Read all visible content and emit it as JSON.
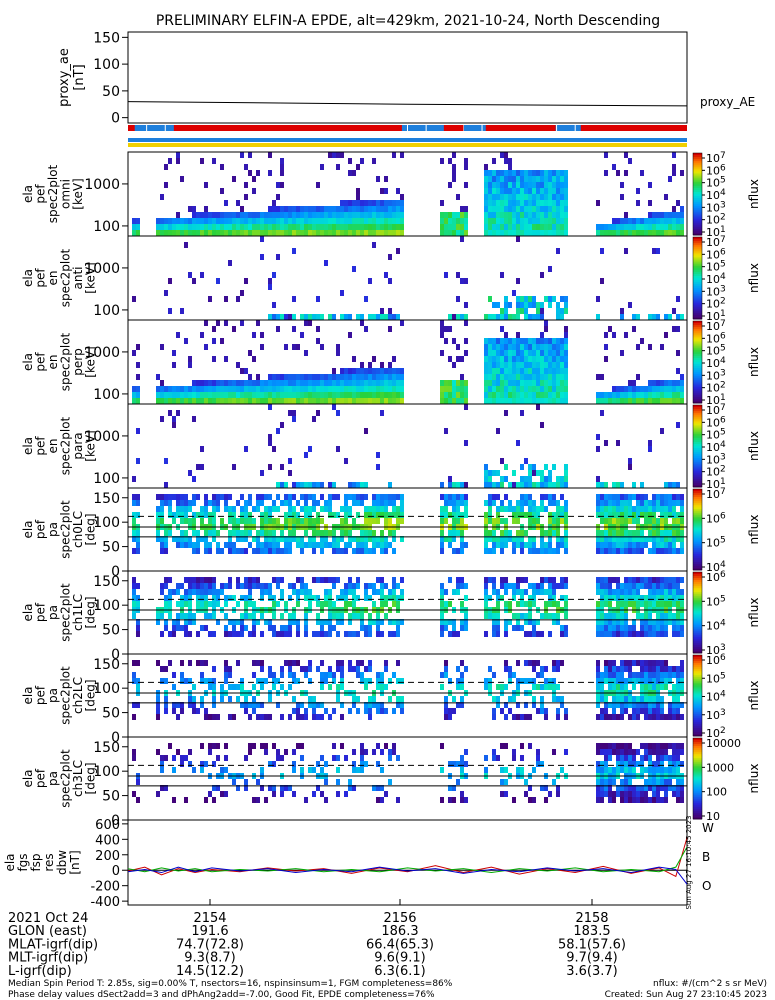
{
  "title": "PRELIMINARY ELFIN-A EPDE, alt=429km, 2021-10-24, North Descending",
  "colors": {
    "red": "#dd0000",
    "blue": "#1e7fdc",
    "yellow": "#f0d000",
    "wfield": "#cc0000",
    "bfield": "#00aa00",
    "ofield": "#0000cc"
  },
  "chart_data": [
    {
      "type": "line",
      "ylabel_lines": [
        "proxy_ae",
        "[nT]"
      ],
      "yticks": [
        "150",
        "100",
        "50",
        "0"
      ],
      "ylim": [
        -10,
        160
      ],
      "legend": "proxy_AE",
      "series": [
        {
          "name": "proxy_AE",
          "x": [
            0,
            0.5,
            1
          ],
          "values": [
            30,
            25,
            22
          ]
        }
      ]
    },
    {
      "type": "heatmap",
      "ylabel_lines": [
        "ela",
        "pef",
        "spec2plot",
        "omni",
        "[keV]"
      ],
      "yticks": [
        "1000",
        "100"
      ],
      "cbar_ticks": [
        "10^7",
        "10^6",
        "10^5",
        "10^4",
        "10^3",
        "10^2",
        "10^1"
      ],
      "cbar_label": "nflux"
    },
    {
      "type": "heatmap",
      "ylabel_lines": [
        "ela",
        "pef",
        "en",
        "spec2plot",
        "anti",
        "[keV]"
      ],
      "yticks": [
        "1000",
        "100"
      ],
      "cbar_ticks": [
        "10^7",
        "10^6",
        "10^5",
        "10^4",
        "10^3",
        "10^2",
        "10^1"
      ],
      "cbar_label": "nflux"
    },
    {
      "type": "heatmap",
      "ylabel_lines": [
        "ela",
        "pef",
        "en",
        "spec2plot",
        "perp",
        "[keV]"
      ],
      "yticks": [
        "1000",
        "100"
      ],
      "cbar_ticks": [
        "10^7",
        "10^6",
        "10^5",
        "10^4",
        "10^3",
        "10^2",
        "10^1"
      ],
      "cbar_label": "nflux"
    },
    {
      "type": "heatmap",
      "ylabel_lines": [
        "ela",
        "pef",
        "en",
        "spec2plot",
        "para",
        "[keV]"
      ],
      "yticks": [
        "1000",
        "100"
      ],
      "cbar_ticks": [
        "10^7",
        "10^6",
        "10^5",
        "10^4",
        "10^3",
        "10^2",
        "10^1"
      ],
      "cbar_label": "nflux"
    },
    {
      "type": "heatmap",
      "ylabel_lines": [
        "ela",
        "pef",
        "pa",
        "spec2plot",
        "ch0LC",
        "[deg]"
      ],
      "yticks": [
        "150",
        "100",
        "50",
        "0"
      ],
      "cbar_ticks": [
        "10^7",
        "10^6",
        "10^5",
        "10^4"
      ],
      "cbar_label": "nflux"
    },
    {
      "type": "heatmap",
      "ylabel_lines": [
        "ela",
        "pef",
        "pa",
        "spec2plot",
        "ch1LC",
        "[deg]"
      ],
      "yticks": [
        "150",
        "100",
        "50",
        "0"
      ],
      "cbar_ticks": [
        "10^6",
        "10^5",
        "10^4",
        "10^3"
      ],
      "cbar_label": "nflux"
    },
    {
      "type": "heatmap",
      "ylabel_lines": [
        "ela",
        "pef",
        "pa",
        "spec2plot",
        "ch2LC",
        "[deg]"
      ],
      "yticks": [
        "150",
        "100",
        "50",
        "0"
      ],
      "cbar_ticks": [
        "10^6",
        "10^5",
        "10^4",
        "10^3",
        "10^2"
      ],
      "cbar_label": "nflux"
    },
    {
      "type": "heatmap",
      "ylabel_lines": [
        "ela",
        "pef",
        "pa",
        "spec2plot",
        "ch3LC",
        "[deg]"
      ],
      "yticks": [
        "150",
        "100",
        "50",
        "0"
      ],
      "cbar_ticks": [
        "10000",
        "1000",
        "100",
        "10"
      ],
      "cbar_label": "nflux"
    },
    {
      "type": "line",
      "ylabel_lines": [
        "ela",
        "fgs",
        "fsp",
        "res",
        "dbw",
        "[nT]"
      ],
      "yticks": [
        "600",
        "400",
        "200",
        "0",
        "-200",
        "-400"
      ],
      "ylim": [
        -450,
        650
      ],
      "legend": [
        "W",
        "B",
        "O"
      ],
      "series": [
        {
          "name": "W",
          "x": [
            0,
            0.03,
            0.06,
            0.09,
            0.12,
            0.15,
            0.2,
            0.25,
            0.3,
            0.35,
            0.4,
            0.45,
            0.5,
            0.55,
            0.6,
            0.65,
            0.7,
            0.75,
            0.8,
            0.85,
            0.9,
            0.95,
            0.98,
            1
          ],
          "values": [
            -10,
            40,
            -60,
            20,
            -30,
            10,
            -20,
            30,
            -10,
            20,
            -40,
            30,
            -20,
            60,
            -30,
            40,
            -50,
            20,
            -30,
            50,
            -40,
            30,
            -80,
            420
          ]
        },
        {
          "name": "B",
          "x": [
            0,
            0.03,
            0.06,
            0.09,
            0.12,
            0.15,
            0.2,
            0.25,
            0.3,
            0.35,
            0.4,
            0.45,
            0.5,
            0.55,
            0.6,
            0.65,
            0.7,
            0.75,
            0.8,
            0.85,
            0.9,
            0.95,
            0.98,
            1
          ],
          "values": [
            20,
            -20,
            30,
            -10,
            20,
            -20,
            10,
            -10,
            20,
            -20,
            10,
            -20,
            30,
            -10,
            20,
            -30,
            20,
            -10,
            30,
            -20,
            10,
            -20,
            40,
            300
          ]
        },
        {
          "name": "O",
          "x": [
            0,
            0.03,
            0.06,
            0.09,
            0.12,
            0.15,
            0.2,
            0.25,
            0.3,
            0.35,
            0.4,
            0.45,
            0.5,
            0.55,
            0.6,
            0.65,
            0.7,
            0.75,
            0.8,
            0.85,
            0.9,
            0.95,
            0.98,
            1
          ],
          "values": [
            -20,
            10,
            -30,
            40,
            -20,
            30,
            -10,
            20,
            -30,
            10,
            -20,
            40,
            -10,
            20,
            -40,
            10,
            -20,
            30,
            -10,
            20,
            -30,
            40,
            10,
            -180
          ]
        }
      ]
    }
  ],
  "time_axis": {
    "rows": [
      [
        "2021 Oct 24",
        "2154",
        "2156",
        "2158"
      ],
      [
        "GLON (east)",
        "191.6",
        "186.3",
        "183.5"
      ],
      [
        "MLAT-igrf(dip)",
        "74.7(72.8)",
        "66.4(65.3)",
        "58.1(57.6)"
      ],
      [
        "MLT-igrf(dip)",
        "9.3(8.7)",
        "9.6(9.1)",
        "9.7(9.4)"
      ],
      [
        "L-igrf(dip)",
        "14.5(12.2)",
        "6.3(6.1)",
        "3.6(3.7)"
      ]
    ]
  },
  "footer": {
    "left1": "Median Spin Period T: 2.85s, sig=0.00% T, nsectors=16, nspinsinsum=1, FGM completeness=86%",
    "left2": "Phase delay values dSect2add=3 and dPhAng2add=-7.00, Good Fit, EPDE completeness=76%",
    "right1": "nflux: #/(cm^2 s sr MeV)",
    "right2": "Created: Sun Aug 27 23:10:45 2023",
    "side": "Sun Aug 27 16:10:45 2023"
  }
}
